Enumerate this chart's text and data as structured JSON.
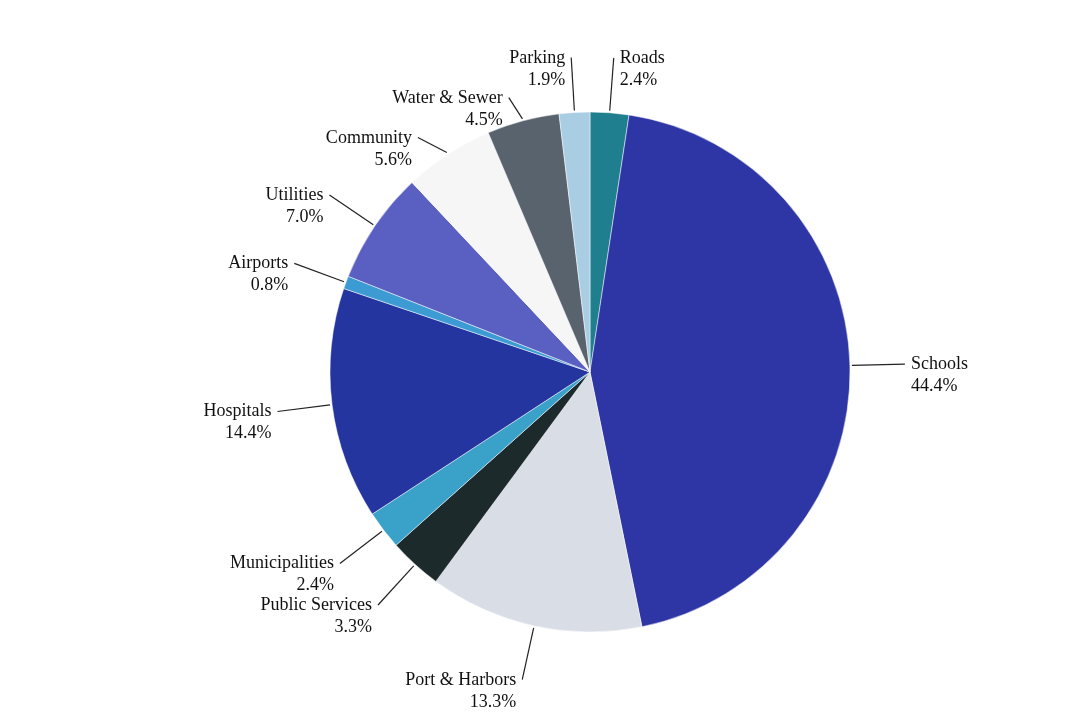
{
  "chart_data": {
    "type": "pie",
    "categories": [
      "Roads",
      "Schools",
      "Port & Harbors",
      "Public Services",
      "Municipalities",
      "Hospitals",
      "Airports",
      "Utilities",
      "Community",
      "Water & Sewer",
      "Parking"
    ],
    "values": [
      2.4,
      44.4,
      13.3,
      3.3,
      2.4,
      14.4,
      0.8,
      7.0,
      5.6,
      4.5,
      1.9
    ],
    "value_labels": [
      "2.4%",
      "44.4%",
      "13.3%",
      "3.3%",
      "2.4%",
      "14.4%",
      "0.8%",
      "7.0%",
      "5.6%",
      "4.5%",
      "1.9%"
    ],
    "colors": [
      "#1f7f8e",
      "#2e36a6",
      "#d9dde6",
      "#1c2a2c",
      "#3aa2c9",
      "#25359f",
      "#3b9bd2",
      "#5a5fc2",
      "#f6f6f6",
      "#59636e",
      "#a9cde2"
    ]
  }
}
